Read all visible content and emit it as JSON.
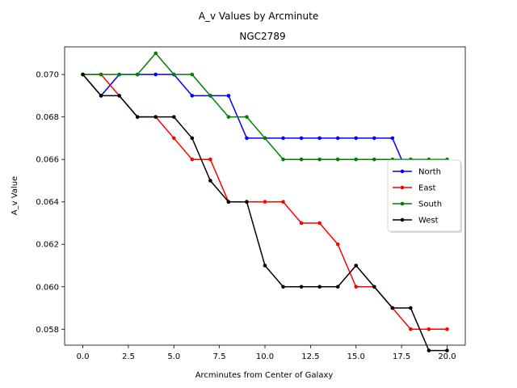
{
  "chart_data": {
    "type": "line",
    "suptitle": "A_v Values by Arcminute",
    "title": "NGC2789",
    "xlabel": "Arcminutes from Center of Galaxy",
    "ylabel": "A_v Value",
    "xlim": [
      -1.0,
      21.0
    ],
    "ylim": [
      0.05725,
      0.0713
    ],
    "xticks": [
      0.0,
      2.5,
      5.0,
      7.5,
      10.0,
      12.5,
      15.0,
      17.5,
      20.0
    ],
    "xtick_labels": [
      "0.0",
      "2.5",
      "5.0",
      "7.5",
      "10.0",
      "12.5",
      "15.0",
      "17.5",
      "20.0"
    ],
    "yticks": [
      0.058,
      0.06,
      0.062,
      0.064,
      0.066,
      0.068,
      0.07
    ],
    "ytick_labels": [
      "0.058",
      "0.060",
      "0.062",
      "0.064",
      "0.066",
      "0.068",
      "0.070"
    ],
    "grid": false,
    "legend_position": "center-right",
    "x": [
      0,
      1,
      2,
      3,
      4,
      5,
      6,
      7,
      8,
      9,
      10,
      11,
      12,
      13,
      14,
      15,
      16,
      17,
      18,
      19,
      20
    ],
    "series": [
      {
        "name": "North",
        "color": "#0000ff",
        "values": [
          0.07,
          0.069,
          0.07,
          0.07,
          0.07,
          0.07,
          0.069,
          0.069,
          0.069,
          0.067,
          0.067,
          0.067,
          0.067,
          0.067,
          0.067,
          0.067,
          0.067,
          0.067,
          0.065,
          0.065,
          0.065
        ]
      },
      {
        "name": "East",
        "color": "#ff0000",
        "values": [
          0.07,
          0.07,
          0.069,
          0.068,
          0.068,
          0.067,
          0.066,
          0.066,
          0.064,
          0.064,
          0.064,
          0.064,
          0.063,
          0.063,
          0.062,
          0.06,
          0.06,
          0.059,
          0.058,
          0.058,
          0.058
        ]
      },
      {
        "name": "South",
        "color": "#008000",
        "values": [
          0.07,
          0.07,
          0.07,
          0.07,
          0.071,
          0.07,
          0.07,
          0.069,
          0.068,
          0.068,
          0.067,
          0.066,
          0.066,
          0.066,
          0.066,
          0.066,
          0.066,
          0.066,
          0.066,
          0.066,
          0.066
        ]
      },
      {
        "name": "West",
        "color": "#000000",
        "values": [
          0.07,
          0.069,
          0.069,
          0.068,
          0.068,
          0.068,
          0.067,
          0.065,
          0.064,
          0.064,
          0.061,
          0.06,
          0.06,
          0.06,
          0.06,
          0.061,
          0.06,
          0.059,
          0.059,
          0.057,
          0.057
        ]
      }
    ]
  }
}
